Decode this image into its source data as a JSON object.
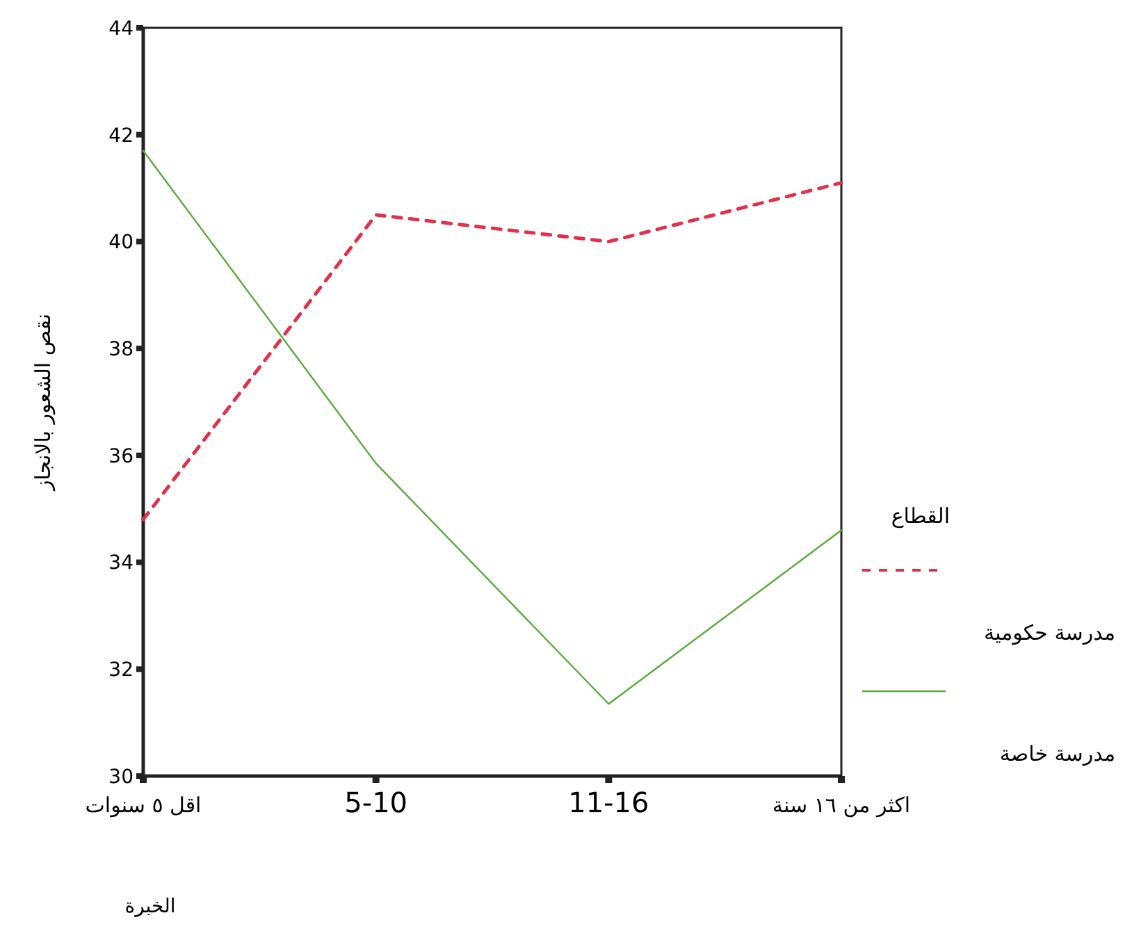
{
  "chart_data": {
    "type": "line",
    "xlabel": "الخبرة",
    "ylabel": "نقص الشعور بالانجاز",
    "legend_title": "القطاع",
    "categories": [
      "اقل ٥ سنوات",
      "5-10",
      "11-16",
      "اكثر من ١٦ سنة"
    ],
    "series": [
      {
        "name": "مدرسة حكومية",
        "color": "#e0304a",
        "line_style": "dashed",
        "values": [
          34.8,
          40.5,
          40.0,
          41.1
        ]
      },
      {
        "name": "مدرسة خاصة",
        "color": "#5aaa3a",
        "line_style": "solid",
        "values": [
          41.7,
          35.85,
          31.35,
          34.6
        ]
      }
    ],
    "ylim": [
      30,
      44
    ],
    "yticks": [
      30,
      32,
      34,
      36,
      38,
      40,
      42,
      44
    ],
    "grid": false,
    "legend": "right"
  }
}
